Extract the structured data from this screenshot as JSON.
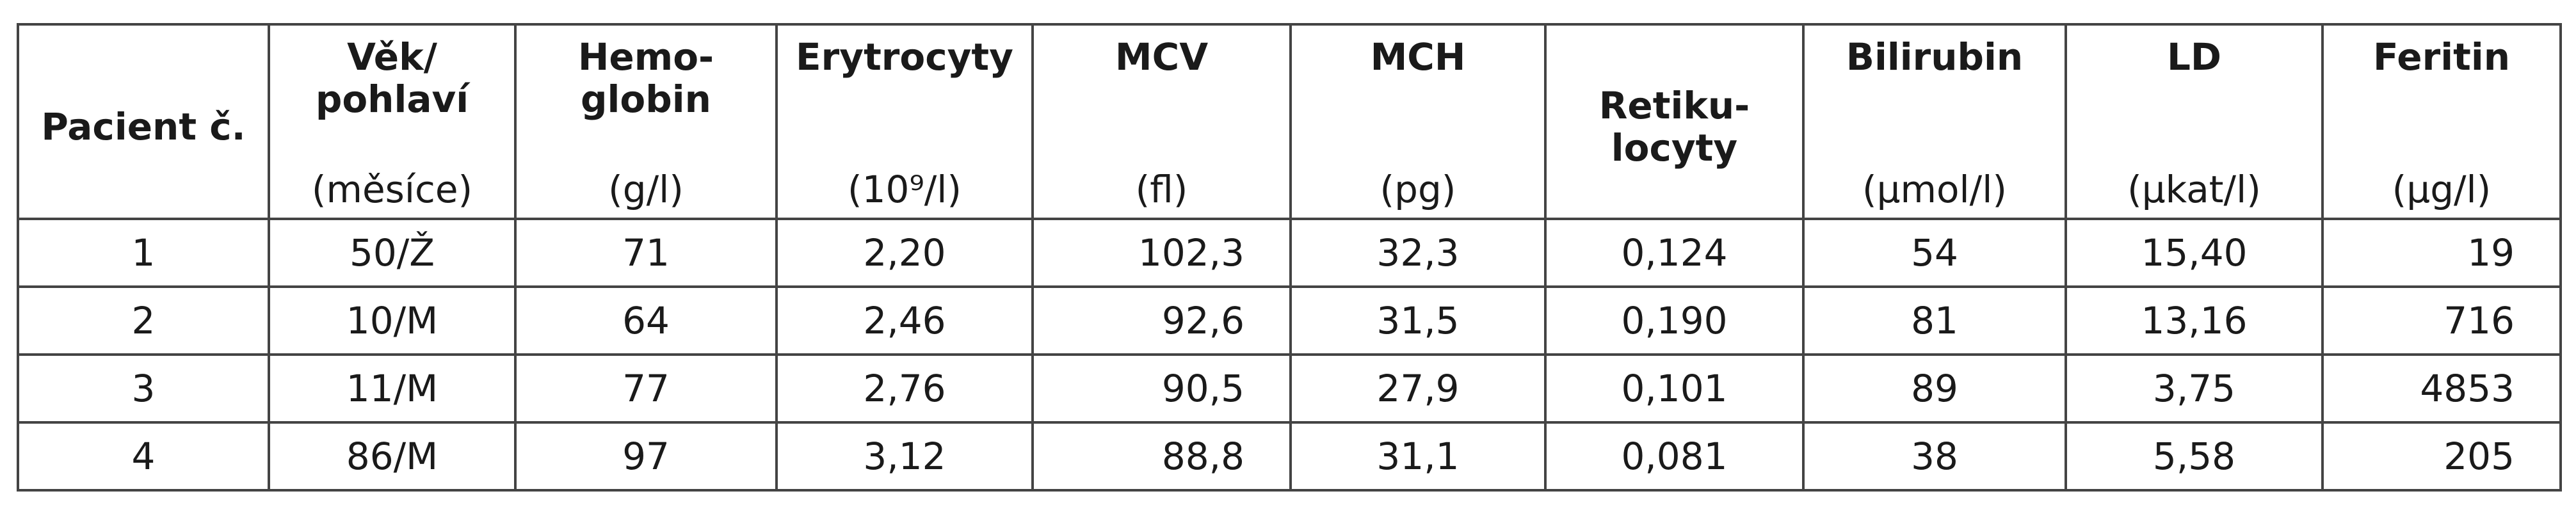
{
  "table": {
    "columns": [
      {
        "label": [
          "Pacient č."
        ],
        "unit": null
      },
      {
        "label": [
          "Věk/",
          "pohlaví"
        ],
        "unit": "(měsíce)"
      },
      {
        "label": [
          "Hemo-",
          "globin"
        ],
        "unit": "(g/l)"
      },
      {
        "label": [
          "Erytrocyty"
        ],
        "unit": "(10⁹/l)"
      },
      {
        "label": [
          "MCV"
        ],
        "unit": "(fl)"
      },
      {
        "label": [
          "MCH"
        ],
        "unit": "(pg)"
      },
      {
        "label": [
          "Retiku-",
          "locyty"
        ],
        "unit": null
      },
      {
        "label": [
          "Bilirubin"
        ],
        "unit": "(μmol/l)"
      },
      {
        "label": [
          "LD"
        ],
        "unit": "(μkat/l)"
      },
      {
        "label": [
          "Feritin"
        ],
        "unit": "(μg/l)"
      }
    ],
    "rows": [
      [
        "1",
        "50/Ž",
        "71",
        "2,20",
        "102,3",
        "32,3",
        "0,124",
        "54",
        "15,40",
        "19"
      ],
      [
        "2",
        "10/M",
        "64",
        "2,46",
        "92,6",
        "31,5",
        "0,190",
        "81",
        "13,16",
        "716"
      ],
      [
        "3",
        "11/M",
        "77",
        "2,76",
        "90,5",
        "27,9",
        "0,101",
        "89",
        "3,75",
        "4853"
      ],
      [
        "4",
        "86/M",
        "97",
        "3,12",
        "88,8",
        "31,1",
        "0,081",
        "38",
        "5,58",
        "205"
      ]
    ]
  }
}
